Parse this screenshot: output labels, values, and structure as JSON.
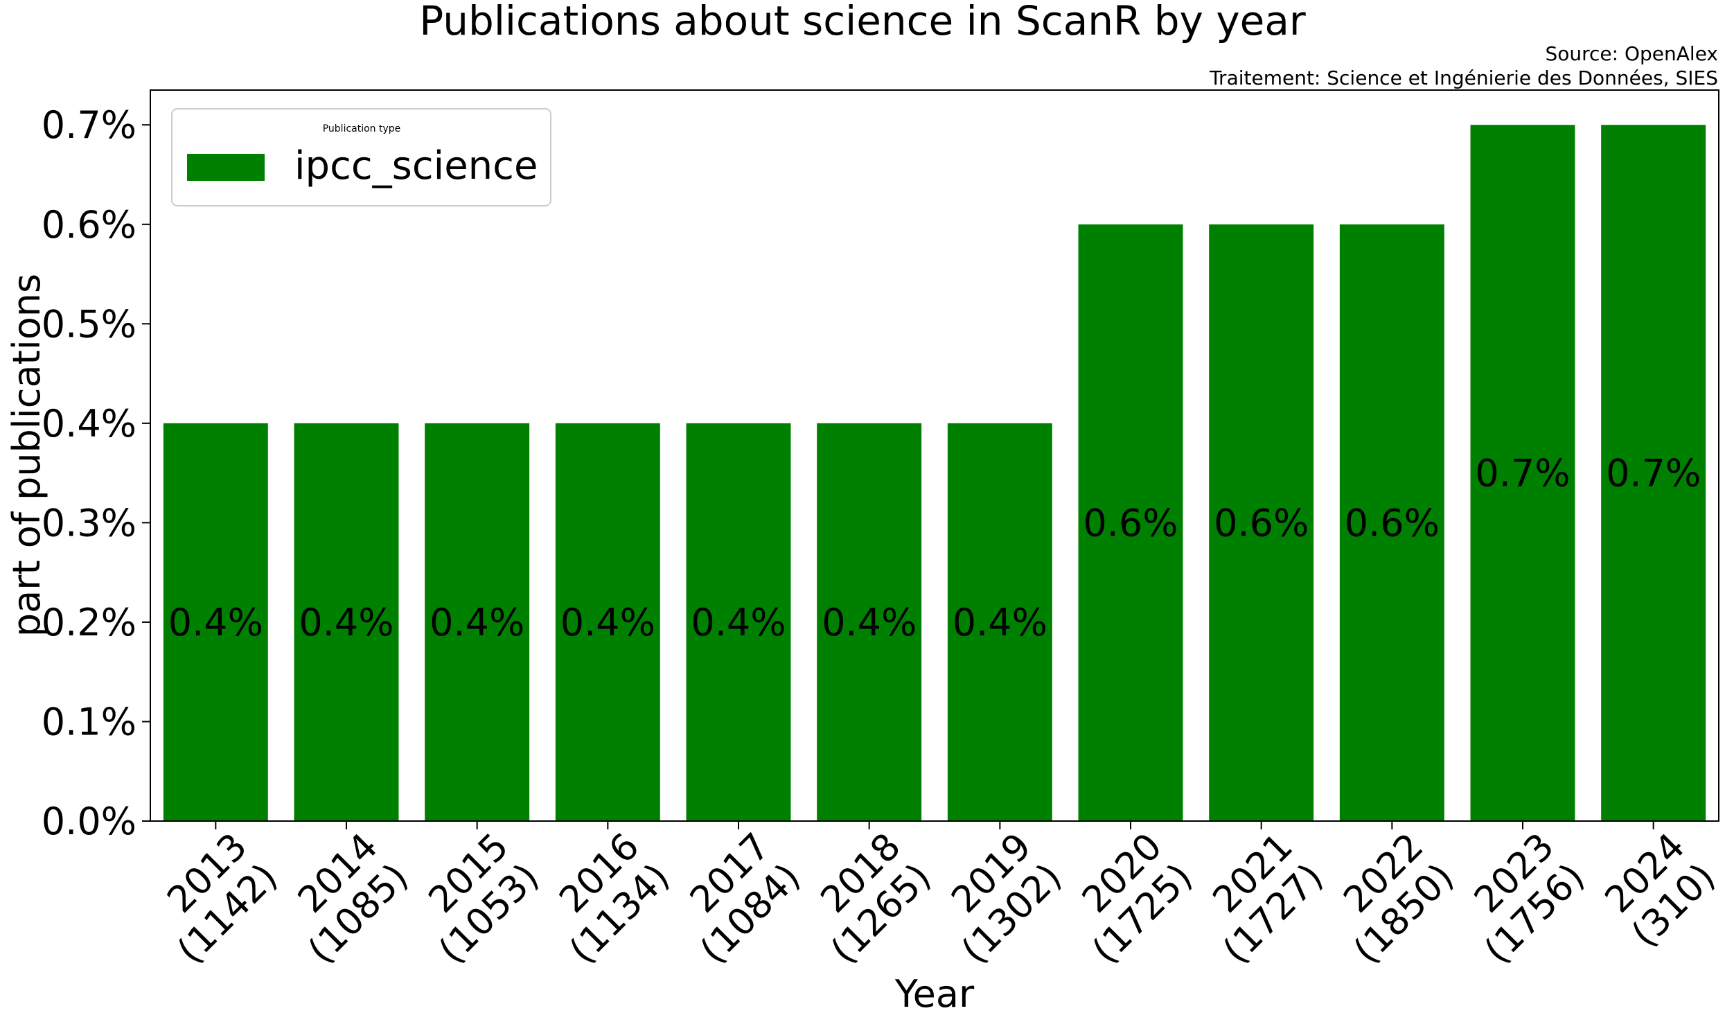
{
  "chart_data": {
    "type": "bar",
    "title": "Publications about science in ScanR by year",
    "source_lines": [
      "Source: OpenAlex",
      "Traitement: Science et Ingénierie des Données, SIES"
    ],
    "xlabel": "Year",
    "ylabel": "part of publications",
    "categories": [
      [
        "2013",
        "(1142)"
      ],
      [
        "2014",
        "(1085)"
      ],
      [
        "2015",
        "(1053)"
      ],
      [
        "2016",
        "(1134)"
      ],
      [
        "2017",
        "(1084)"
      ],
      [
        "2018",
        "(1265)"
      ],
      [
        "2019",
        "(1302)"
      ],
      [
        "2020",
        "(1725)"
      ],
      [
        "2021",
        "(1727)"
      ],
      [
        "2022",
        "(1850)"
      ],
      [
        "2023",
        "(1756)"
      ],
      [
        "2024",
        "(310)"
      ]
    ],
    "series": [
      {
        "name": "ipcc_science",
        "color": "#008000",
        "values": [
          0.4,
          0.4,
          0.4,
          0.4,
          0.4,
          0.4,
          0.4,
          0.6,
          0.6,
          0.6,
          0.7,
          0.7
        ],
        "labels": [
          "0.4%",
          "0.4%",
          "0.4%",
          "0.4%",
          "0.4%",
          "0.4%",
          "0.4%",
          "0.6%",
          "0.6%",
          "0.6%",
          "0.7%",
          "0.7%"
        ]
      }
    ],
    "yticks": [
      "0.0%",
      "0.1%",
      "0.2%",
      "0.3%",
      "0.4%",
      "0.5%",
      "0.6%",
      "0.7%"
    ],
    "ylim": [
      0,
      0.735
    ],
    "legend": {
      "title": "Publication type",
      "placement": "top-left"
    },
    "grid": false
  }
}
